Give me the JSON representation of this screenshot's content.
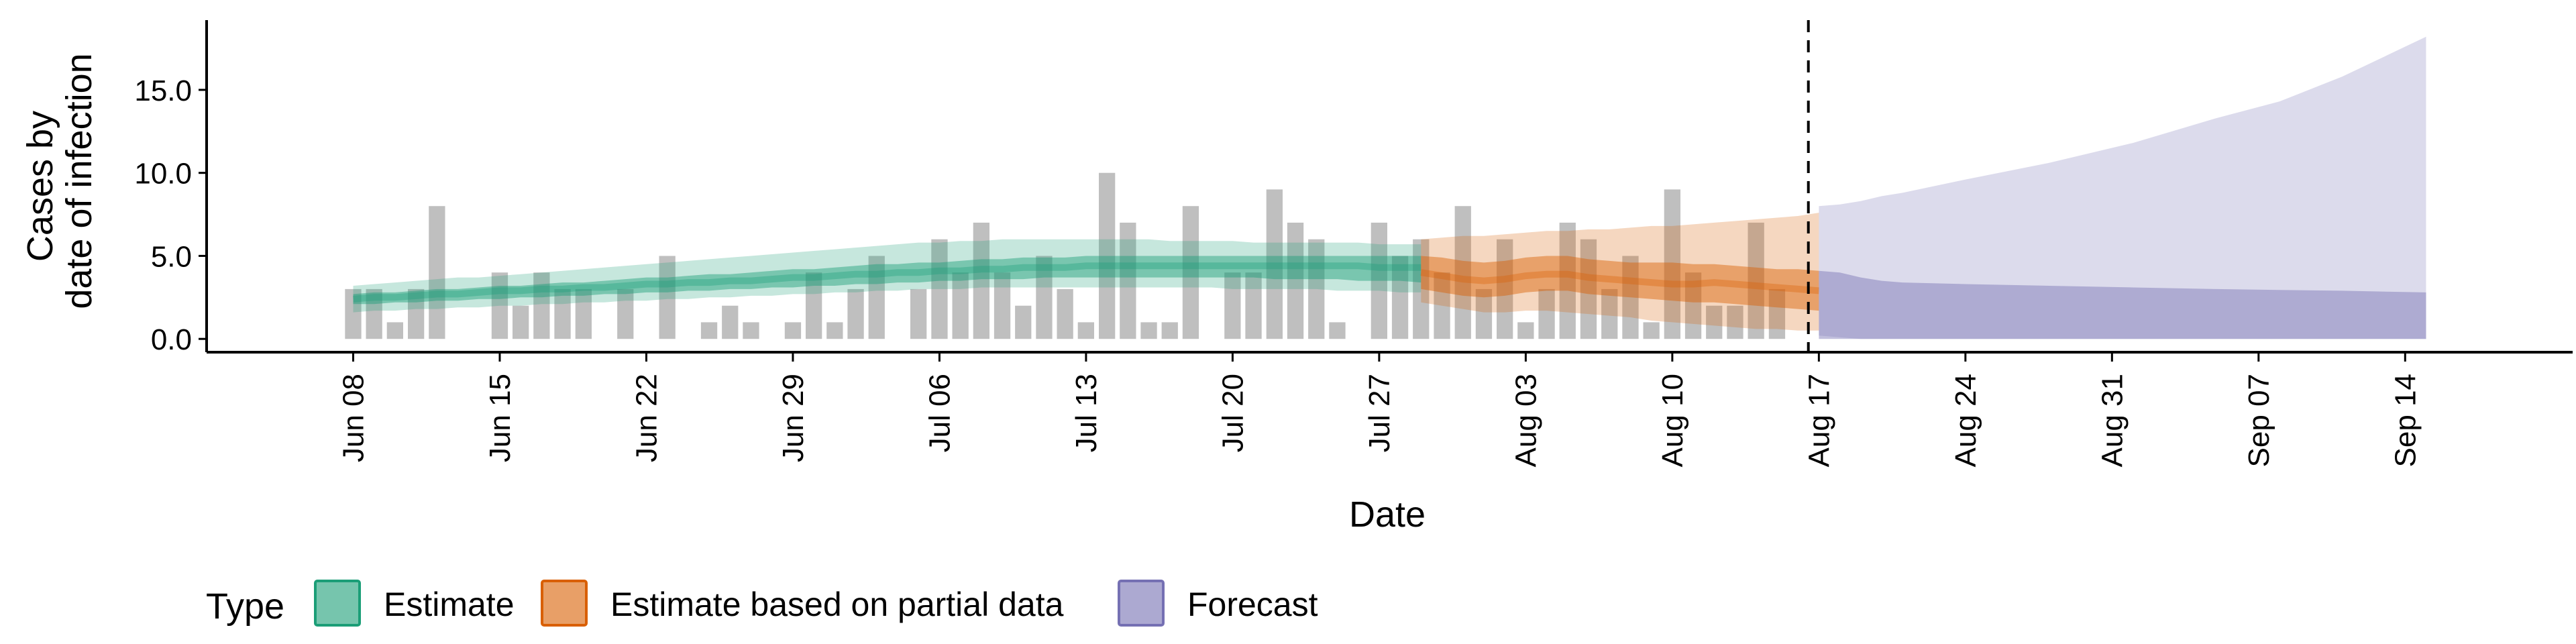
{
  "chart_data": {
    "type": "bar",
    "xlabel": "Date",
    "ylabel_lines": [
      "Cases by",
      "date of infection"
    ],
    "ylim": [
      -0.8,
      19.2
    ],
    "y_ticks": [
      {
        "value": 0,
        "label": "0.0"
      },
      {
        "value": 5,
        "label": "5.0"
      },
      {
        "value": 10,
        "label": "10.0"
      },
      {
        "value": 15,
        "label": "15.0"
      }
    ],
    "x_range": [
      "2020-06-01",
      "2020-09-22"
    ],
    "x_ticks": [
      {
        "date": "2020-06-08",
        "label": "Jun 08"
      },
      {
        "date": "2020-06-15",
        "label": "Jun 15"
      },
      {
        "date": "2020-06-22",
        "label": "Jun 22"
      },
      {
        "date": "2020-06-29",
        "label": "Jun 29"
      },
      {
        "date": "2020-07-06",
        "label": "Jul 06"
      },
      {
        "date": "2020-07-13",
        "label": "Jul 13"
      },
      {
        "date": "2020-07-20",
        "label": "Jul 20"
      },
      {
        "date": "2020-07-27",
        "label": "Jul 27"
      },
      {
        "date": "2020-08-03",
        "label": "Aug 03"
      },
      {
        "date": "2020-08-10",
        "label": "Aug 10"
      },
      {
        "date": "2020-08-17",
        "label": "Aug 17"
      },
      {
        "date": "2020-08-24",
        "label": "Aug 24"
      },
      {
        "date": "2020-08-31",
        "label": "Aug 31"
      },
      {
        "date": "2020-09-07",
        "label": "Sep 07"
      },
      {
        "date": "2020-09-14",
        "label": "Sep 14"
      }
    ],
    "forecast_start": "2020-08-16",
    "reported_cases": {
      "start_date": "2020-06-08",
      "values": [
        3,
        3,
        1,
        3,
        8,
        0,
        0,
        4,
        2,
        4,
        3,
        3,
        0,
        3,
        0,
        5,
        0,
        1,
        2,
        1,
        0,
        1,
        4,
        1,
        3,
        5,
        0,
        3,
        6,
        4,
        7,
        4,
        2,
        5,
        3,
        1,
        10,
        7,
        1,
        1,
        8,
        0,
        4,
        4,
        9,
        7,
        6,
        1,
        0,
        7,
        5,
        6,
        4,
        8,
        3,
        6,
        1,
        3,
        7,
        6,
        3,
        5,
        1,
        9,
        4,
        2,
        2,
        7,
        3
      ]
    },
    "series": [
      {
        "name": "Estimate",
        "color": "#1B9E77",
        "start_date": "2020-06-08",
        "median": [
          2.4,
          2.5,
          2.5,
          2.6,
          2.7,
          2.7,
          2.8,
          2.9,
          2.9,
          3.0,
          3.0,
          3.1,
          3.1,
          3.2,
          3.3,
          3.3,
          3.4,
          3.4,
          3.5,
          3.5,
          3.6,
          3.7,
          3.7,
          3.8,
          3.9,
          3.9,
          4.0,
          4.0,
          4.1,
          4.1,
          4.2,
          4.2,
          4.3,
          4.3,
          4.3,
          4.4,
          4.4,
          4.4,
          4.4,
          4.4,
          4.4,
          4.4,
          4.4,
          4.4,
          4.4,
          4.4,
          4.4,
          4.4,
          4.4,
          4.3,
          4.3,
          4.3
        ],
        "lower_50": [
          2.1,
          2.1,
          2.2,
          2.2,
          2.3,
          2.3,
          2.4,
          2.4,
          2.5,
          2.5,
          2.6,
          2.6,
          2.7,
          2.7,
          2.8,
          2.8,
          2.9,
          2.9,
          3.0,
          3.0,
          3.1,
          3.1,
          3.2,
          3.2,
          3.3,
          3.3,
          3.4,
          3.4,
          3.5,
          3.5,
          3.6,
          3.6,
          3.6,
          3.7,
          3.7,
          3.7,
          3.7,
          3.7,
          3.7,
          3.7,
          3.7,
          3.7,
          3.7,
          3.7,
          3.6,
          3.6,
          3.6,
          3.6,
          3.5,
          3.5,
          3.5,
          3.4
        ],
        "upper_50": [
          2.7,
          2.8,
          2.8,
          2.9,
          3.0,
          3.0,
          3.1,
          3.2,
          3.2,
          3.3,
          3.4,
          3.4,
          3.5,
          3.6,
          3.7,
          3.7,
          3.8,
          3.9,
          3.9,
          4.0,
          4.1,
          4.2,
          4.2,
          4.3,
          4.4,
          4.5,
          4.5,
          4.6,
          4.6,
          4.7,
          4.8,
          4.8,
          4.9,
          4.9,
          4.9,
          5.0,
          5.0,
          5.0,
          5.0,
          5.0,
          5.0,
          5.0,
          5.0,
          5.0,
          5.0,
          5.0,
          5.0,
          5.0,
          5.0,
          5.0,
          5.0,
          5.0
        ],
        "lower_90": [
          1.6,
          1.7,
          1.7,
          1.8,
          1.8,
          1.9,
          1.9,
          2.0,
          2.0,
          2.1,
          2.1,
          2.2,
          2.2,
          2.3,
          2.3,
          2.4,
          2.4,
          2.5,
          2.5,
          2.6,
          2.6,
          2.7,
          2.7,
          2.8,
          2.8,
          2.9,
          2.9,
          3.0,
          3.0,
          3.0,
          3.1,
          3.1,
          3.1,
          3.1,
          3.1,
          3.1,
          3.1,
          3.1,
          3.1,
          3.1,
          3.1,
          3.1,
          3.0,
          3.0,
          3.0,
          3.0,
          3.0,
          2.9,
          2.9,
          2.9,
          2.8,
          2.8
        ],
        "upper_90": [
          3.2,
          3.3,
          3.4,
          3.5,
          3.6,
          3.7,
          3.7,
          3.8,
          3.9,
          4.0,
          4.1,
          4.2,
          4.3,
          4.4,
          4.5,
          4.6,
          4.7,
          4.8,
          4.9,
          5.0,
          5.1,
          5.2,
          5.3,
          5.4,
          5.5,
          5.6,
          5.7,
          5.8,
          5.8,
          5.9,
          5.9,
          6.0,
          6.0,
          6.0,
          6.0,
          6.0,
          6.0,
          6.0,
          6.0,
          5.9,
          5.9,
          5.9,
          5.9,
          5.8,
          5.8,
          5.8,
          5.8,
          5.8,
          5.8,
          5.7,
          5.7,
          5.7
        ]
      },
      {
        "name": "Estimate based on partial data",
        "color": "#D95F02",
        "start_date": "2020-07-29",
        "median": [
          4.0,
          3.8,
          3.6,
          3.5,
          3.6,
          3.8,
          3.9,
          3.9,
          3.7,
          3.6,
          3.5,
          3.4,
          3.3,
          3.3,
          3.4,
          3.3,
          3.2,
          3.1,
          3.0,
          2.9
        ],
        "lower_50": [
          3.0,
          2.8,
          2.6,
          2.5,
          2.6,
          2.8,
          2.9,
          2.9,
          2.7,
          2.6,
          2.5,
          2.4,
          2.3,
          2.2,
          2.2,
          2.1,
          2.0,
          1.9,
          1.8,
          1.7
        ],
        "upper_50": [
          5.0,
          4.9,
          4.7,
          4.6,
          4.7,
          4.9,
          5.0,
          5.0,
          4.8,
          4.7,
          4.6,
          4.6,
          4.6,
          4.5,
          4.5,
          4.4,
          4.3,
          4.2,
          4.2,
          4.1
        ],
        "lower_90": [
          2.2,
          2.0,
          1.8,
          1.6,
          1.6,
          1.7,
          1.7,
          1.6,
          1.5,
          1.4,
          1.3,
          1.1,
          1.0,
          0.9,
          0.8,
          0.7,
          0.6,
          0.6,
          0.5,
          0.5
        ],
        "upper_90": [
          6.0,
          6.1,
          6.2,
          6.2,
          6.3,
          6.4,
          6.5,
          6.5,
          6.6,
          6.6,
          6.7,
          6.8,
          6.8,
          6.9,
          7.0,
          7.1,
          7.2,
          7.3,
          7.4,
          7.6
        ]
      },
      {
        "name": "Forecast",
        "color": "#7570B3",
        "start_date": "2020-08-17",
        "dates": [
          "2020-08-17",
          "2020-08-18",
          "2020-08-19",
          "2020-08-20",
          "2020-08-21",
          "2020-08-24",
          "2020-08-28",
          "2020-09-01",
          "2020-09-05",
          "2020-09-08",
          "2020-09-11",
          "2020-09-15"
        ],
        "lower_50": [
          0,
          0,
          0,
          0,
          0,
          0,
          0,
          0,
          0,
          0,
          0,
          0
        ],
        "upper_50": [
          4.1,
          4.0,
          3.7,
          3.5,
          3.4,
          3.3,
          3.2,
          3.1,
          3.0,
          2.95,
          2.9,
          2.8
        ],
        "lower_90": [
          0.2,
          0.1,
          0,
          0,
          0,
          0,
          0,
          0,
          0,
          0,
          0,
          0
        ],
        "upper_90": [
          8.0,
          8.1,
          8.3,
          8.6,
          8.8,
          9.6,
          10.6,
          11.8,
          13.3,
          14.3,
          15.8,
          18.2
        ]
      }
    ],
    "legend": {
      "title": "Type",
      "position": "bottom",
      "items": [
        {
          "label": "Estimate",
          "color": "#1B9E77"
        },
        {
          "label": "Estimate based on partial data",
          "color": "#D95F02"
        },
        {
          "label": "Forecast",
          "color": "#7570B3"
        }
      ]
    },
    "grid": false
  }
}
